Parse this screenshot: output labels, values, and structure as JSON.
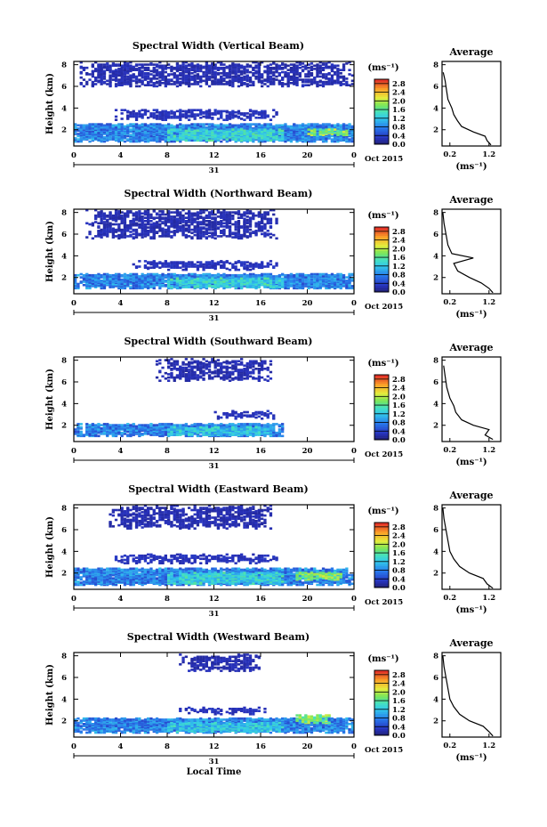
{
  "chart_data": [
    {
      "type": "heatmap",
      "title": "Spectral Width (Vertical Beam)",
      "ylabel": "Height (km)",
      "xlabel": "",
      "x_ticks": [
        "0",
        "4",
        "8",
        "12",
        "16",
        "20",
        "0"
      ],
      "y_ticks": [
        "2",
        "4",
        "6",
        "8"
      ],
      "xlim": [
        0,
        24
      ],
      "ylim": [
        0.5,
        8.3
      ],
      "date_label": "31",
      "month_label": "Oct 2015",
      "colorbar": {
        "unit": "(ms⁻¹)",
        "ticks": [
          "0.0",
          "0.4",
          "0.8",
          "1.2",
          "1.6",
          "2.0",
          "2.4",
          "2.8"
        ],
        "range": [
          0,
          3.0
        ]
      },
      "average": {
        "title": "Average",
        "xlabel": "(ms⁻¹)",
        "x_ticks": [
          "0.2",
          "1.2"
        ],
        "xlim": [
          0,
          1.5
        ],
        "profile": [
          [
            1.25,
            0.6
          ],
          [
            1.15,
            1.0
          ],
          [
            1.1,
            1.4
          ],
          [
            0.8,
            1.8
          ],
          [
            0.5,
            2.3
          ],
          [
            0.4,
            2.8
          ],
          [
            0.3,
            3.4
          ],
          [
            0.25,
            4.0
          ],
          [
            0.15,
            4.8
          ],
          [
            0.12,
            5.5
          ],
          [
            0.08,
            6.5
          ],
          [
            0.03,
            7.3
          ]
        ]
      },
      "layers": [
        {
          "t0": 0,
          "t1": 24,
          "h0": 0.8,
          "h1": 2.5,
          "level": 0.8
        },
        {
          "t0": 8,
          "t1": 18,
          "h0": 0.9,
          "h1": 2.0,
          "level": 1.3
        },
        {
          "t0": 3.5,
          "t1": 17.5,
          "h0": 2.8,
          "h1": 3.8,
          "level": 0.3
        },
        {
          "t0": 0.5,
          "t1": 24,
          "h0": 5.9,
          "h1": 8.1,
          "level": 0.25
        },
        {
          "t0": 20,
          "t1": 23.5,
          "h0": 1.4,
          "h1": 2.0,
          "level": 1.8
        }
      ]
    },
    {
      "type": "heatmap",
      "title": "Spectral Width (Northward Beam)",
      "ylabel": "Height (km)",
      "xlabel": "",
      "x_ticks": [
        "0",
        "4",
        "8",
        "12",
        "16",
        "20",
        "0"
      ],
      "y_ticks": [
        "2",
        "4",
        "6",
        "8"
      ],
      "xlim": [
        0,
        24
      ],
      "ylim": [
        0.5,
        8.3
      ],
      "date_label": "31",
      "month_label": "Oct 2015",
      "colorbar": {
        "unit": "(ms⁻¹)",
        "ticks": [
          "0.0",
          "0.4",
          "0.8",
          "1.2",
          "1.6",
          "2.0",
          "2.4",
          "2.8"
        ],
        "range": [
          0,
          3.0
        ]
      },
      "average": {
        "title": "Average",
        "xlabel": "(ms⁻¹)",
        "x_ticks": [
          "0.2",
          "1.2"
        ],
        "xlim": [
          0,
          1.5
        ],
        "profile": [
          [
            1.3,
            0.6
          ],
          [
            1.2,
            1.0
          ],
          [
            1.0,
            1.5
          ],
          [
            0.7,
            2.0
          ],
          [
            0.4,
            2.6
          ],
          [
            0.3,
            3.3
          ],
          [
            0.8,
            3.8
          ],
          [
            0.25,
            4.2
          ],
          [
            0.15,
            5.0
          ],
          [
            0.1,
            6.0
          ],
          [
            0.05,
            7.0
          ],
          [
            0.02,
            8.0
          ]
        ]
      },
      "layers": [
        {
          "t0": 0,
          "t1": 24,
          "h0": 0.9,
          "h1": 2.3,
          "level": 0.8
        },
        {
          "t0": 8,
          "t1": 18,
          "h0": 1.0,
          "h1": 1.9,
          "level": 1.3
        },
        {
          "t0": 5,
          "t1": 17.5,
          "h0": 2.6,
          "h1": 3.5,
          "level": 0.3
        },
        {
          "t0": 1,
          "t1": 17.5,
          "h0": 5.5,
          "h1": 8.1,
          "level": 0.25
        }
      ]
    },
    {
      "type": "heatmap",
      "title": "Spectral Width (Southward Beam)",
      "ylabel": "Height (km)",
      "xlabel": "",
      "x_ticks": [
        "0",
        "4",
        "8",
        "12",
        "16",
        "20",
        "0"
      ],
      "y_ticks": [
        "2",
        "4",
        "6",
        "8"
      ],
      "xlim": [
        0,
        24
      ],
      "ylim": [
        0.5,
        8.3
      ],
      "date_label": "31",
      "month_label": "Oct 2015",
      "colorbar": {
        "unit": "(ms⁻¹)",
        "ticks": [
          "0.0",
          "0.4",
          "0.8",
          "1.2",
          "1.6",
          "2.0",
          "2.4",
          "2.8"
        ],
        "range": [
          0,
          3.0
        ]
      },
      "average": {
        "title": "Average",
        "xlabel": "(ms⁻¹)",
        "x_ticks": [
          "0.2",
          "1.2"
        ],
        "xlim": [
          0,
          1.5
        ],
        "profile": [
          [
            1.3,
            0.7
          ],
          [
            1.1,
            1.1
          ],
          [
            1.2,
            1.6
          ],
          [
            0.8,
            2.0
          ],
          [
            0.5,
            2.5
          ],
          [
            0.35,
            3.2
          ],
          [
            0.3,
            3.8
          ],
          [
            0.2,
            4.5
          ],
          [
            0.12,
            5.5
          ],
          [
            0.08,
            6.5
          ],
          [
            0.04,
            7.5
          ]
        ]
      },
      "layers": [
        {
          "t0": 0,
          "t1": 18,
          "h0": 0.9,
          "h1": 2.1,
          "level": 0.8
        },
        {
          "t0": 8,
          "t1": 17,
          "h0": 1.0,
          "h1": 1.8,
          "level": 1.2
        },
        {
          "t0": 12,
          "t1": 17.5,
          "h0": 2.5,
          "h1": 3.3,
          "level": 0.3
        },
        {
          "t0": 7,
          "t1": 17,
          "h0": 6.0,
          "h1": 8.0,
          "level": 0.25
        }
      ]
    },
    {
      "type": "heatmap",
      "title": "Spectral Width (Eastward Beam)",
      "ylabel": "Height (km)",
      "xlabel": "",
      "x_ticks": [
        "0",
        "4",
        "8",
        "12",
        "16",
        "20",
        "0"
      ],
      "y_ticks": [
        "2",
        "4",
        "6",
        "8"
      ],
      "xlim": [
        0,
        24
      ],
      "ylim": [
        0.5,
        8.3
      ],
      "date_label": "31",
      "month_label": "Oct 2015",
      "colorbar": {
        "unit": "(ms⁻¹)",
        "ticks": [
          "0.0",
          "0.4",
          "0.8",
          "1.2",
          "1.6",
          "2.0",
          "2.4",
          "2.8"
        ],
        "range": [
          0,
          3.0
        ]
      },
      "average": {
        "title": "Average",
        "xlabel": "(ms⁻¹)",
        "x_ticks": [
          "0.2",
          "1.2"
        ],
        "xlim": [
          0,
          1.5
        ],
        "profile": [
          [
            1.3,
            0.6
          ],
          [
            1.15,
            1.0
          ],
          [
            1.05,
            1.5
          ],
          [
            0.7,
            2.0
          ],
          [
            0.45,
            2.6
          ],
          [
            0.3,
            3.3
          ],
          [
            0.2,
            4.0
          ],
          [
            0.15,
            5.0
          ],
          [
            0.1,
            6.0
          ],
          [
            0.05,
            7.0
          ],
          [
            0.02,
            8.0
          ]
        ]
      },
      "layers": [
        {
          "t0": 0,
          "t1": 24,
          "h0": 0.8,
          "h1": 2.4,
          "level": 0.8
        },
        {
          "t0": 8,
          "t1": 18,
          "h0": 0.9,
          "h1": 2.0,
          "level": 1.3
        },
        {
          "t0": 3.5,
          "t1": 17.5,
          "h0": 2.8,
          "h1": 3.7,
          "level": 0.3
        },
        {
          "t0": 3,
          "t1": 17,
          "h0": 6.0,
          "h1": 8.1,
          "level": 0.25
        },
        {
          "t0": 19,
          "t1": 23,
          "h0": 1.3,
          "h1": 2.0,
          "level": 1.8
        }
      ]
    },
    {
      "type": "heatmap",
      "title": "Spectral Width (Westward Beam)",
      "ylabel": "Height (km)",
      "xlabel": "Local Time",
      "x_ticks": [
        "0",
        "4",
        "8",
        "12",
        "16",
        "20",
        "0"
      ],
      "y_ticks": [
        "2",
        "4",
        "6",
        "8"
      ],
      "xlim": [
        0,
        24
      ],
      "ylim": [
        0.5,
        8.3
      ],
      "date_label": "31",
      "month_label": "Oct 2015",
      "colorbar": {
        "unit": "(ms⁻¹)",
        "ticks": [
          "0.0",
          "0.4",
          "0.8",
          "1.2",
          "1.6",
          "2.0",
          "2.4",
          "2.8"
        ],
        "range": [
          0,
          3.0
        ]
      },
      "average": {
        "title": "Average",
        "xlabel": "(ms⁻¹)",
        "x_ticks": [
          "0.2",
          "1.2"
        ],
        "xlim": [
          0,
          1.5
        ],
        "profile": [
          [
            1.3,
            0.6
          ],
          [
            1.2,
            1.0
          ],
          [
            1.05,
            1.5
          ],
          [
            0.7,
            2.0
          ],
          [
            0.45,
            2.6
          ],
          [
            0.3,
            3.3
          ],
          [
            0.2,
            4.0
          ],
          [
            0.15,
            5.0
          ],
          [
            0.1,
            6.0
          ],
          [
            0.05,
            7.0
          ],
          [
            0.02,
            8.0
          ]
        ]
      },
      "layers": [
        {
          "t0": 0,
          "t1": 24,
          "h0": 0.8,
          "h1": 2.2,
          "level": 0.8
        },
        {
          "t0": 8,
          "t1": 18,
          "h0": 0.9,
          "h1": 1.8,
          "level": 1.2
        },
        {
          "t0": 9,
          "t1": 16.5,
          "h0": 2.5,
          "h1": 3.2,
          "level": 0.3
        },
        {
          "t0": 9,
          "t1": 16,
          "h0": 6.5,
          "h1": 8.0,
          "level": 0.25
        },
        {
          "t0": 19,
          "t1": 22,
          "h0": 1.7,
          "h1": 2.5,
          "level": 1.8
        }
      ]
    }
  ]
}
